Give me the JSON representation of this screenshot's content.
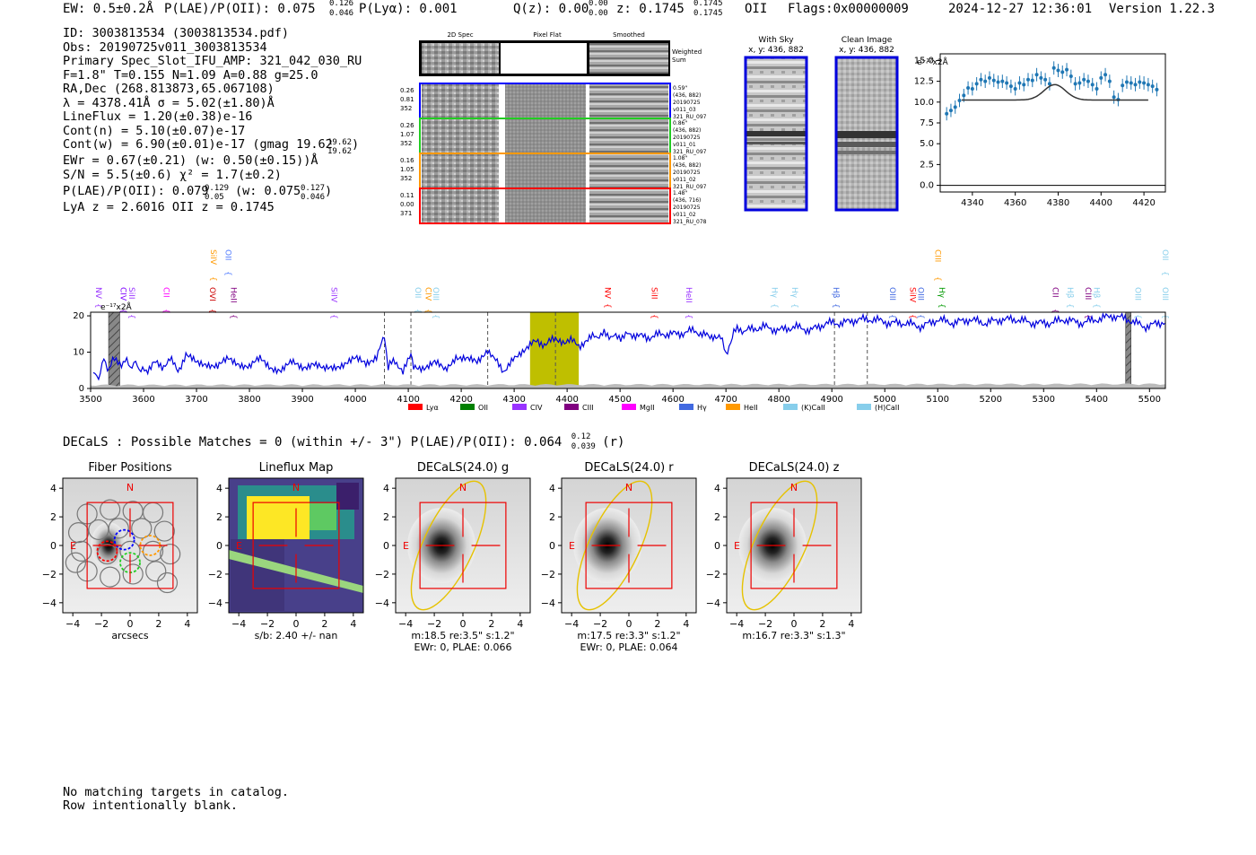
{
  "header": {
    "ew": "EW: 0.5±0.2Å",
    "plae": "P(LAE)/P(OII): 0.075",
    "plae_sup": "0.126",
    "plae_sub": "0.046",
    "plya": "P(Lyα): 0.001",
    "qz": "Q(z): 0.00",
    "qz_sup": "0.00",
    "qz_sub": "0.00",
    "z": "z: 0.1745",
    "z_sup": "0.1745",
    "z_sub": "0.1745",
    "z_line": "OII",
    "flags": "Flags:0x00000009",
    "timestamp": "2024-12-27 12:36:01",
    "version": "Version 1.22.3"
  },
  "info": {
    "id": "ID: 3003813534 (3003813534.pdf)",
    "obs": "Obs: 20190725v011_3003813534",
    "primary": "Primary Spec_Slot_IFU_AMP: 321_042_030_RU",
    "params": "F=1.8\"  T=0.155  N=1.09  A=0.88  g=25.0",
    "radec": "RA,Dec (268.813873,65.067108)",
    "lambda": "λ = 4378.41Å  σ = 5.02(±1.80)Å",
    "lineflux": "LineFlux = 1.20(±0.38)e-16",
    "contn": "Cont(n) = 5.10(±0.07)e-17",
    "contw": "Cont(w) = 6.90(±0.01)e-17 (gmag 19.62",
    "contw_sup": "19.62",
    "contw_sub": "19.62",
    "ewr": "EWr = 0.67(±0.21) (w: 0.50(±0.15))Å",
    "sn": "S/N = 5.5(±0.6)  χ² = 1.7(±0.2)",
    "plae": "P(LAE)/P(OII): 0.079",
    "plae_sup": "0.129",
    "plae_sub": "0.05",
    "plae_w": "(w: 0.075",
    "plae_w_sup": "0.127",
    "plae_w_sub": "0.046",
    "lya": "LyA z = 2.6016  OII z = 0.1745"
  },
  "cutouts": {
    "col_headers": [
      "2D Spec",
      "Pixel Flat",
      "Smoothed"
    ],
    "weighted_label": "Weighted Sum",
    "rows": [
      {
        "left": [
          "0.26",
          "0.81",
          "352"
        ],
        "right": [
          "0.59\"",
          "(436, 882)",
          "20190725",
          "v011_03",
          "321_RU_097"
        ],
        "color": "#0000ff"
      },
      {
        "left": [
          "0.26",
          "1.07",
          "352"
        ],
        "right": [
          "0.86\"",
          "(436, 882)",
          "20190725",
          "v011_01",
          "321_RU_097"
        ],
        "color": "#22cc22"
      },
      {
        "left": [
          "0.16",
          "1.05",
          "352"
        ],
        "right": [
          "1.08\"",
          "(436, 882)",
          "20190725",
          "v011_02",
          "321_RU_097"
        ],
        "color": "#ff9900"
      },
      {
        "left": [
          "0.11",
          "0.00",
          "371"
        ],
        "right": [
          "1.48\"",
          "(436, 716)",
          "20190725",
          "v011_02",
          "321_RU_078"
        ],
        "color": "#ff0000"
      }
    ]
  },
  "sky": {
    "with_title": "With Sky",
    "with_coords": "x, y: 436, 882",
    "clean_title": "Clean Image",
    "clean_coords": "x, y: 436, 882"
  },
  "zoom_chart": {
    "chart_data": {
      "type": "scatter",
      "ylabel": "e⁻¹⁷x2Å",
      "xlim": [
        4325,
        4430
      ],
      "ylim": [
        -0.8,
        15.8
      ],
      "xticks": [
        4340,
        4360,
        4380,
        4400,
        4420
      ],
      "yticks": [
        "0.0",
        "2.5",
        "5.0",
        "7.5",
        "10.0",
        "12.5",
        "15.0"
      ],
      "x": [
        4328,
        4330,
        4332,
        4334,
        4336,
        4338,
        4340,
        4342,
        4344,
        4346,
        4348,
        4350,
        4352,
        4354,
        4356,
        4358,
        4360,
        4362,
        4364,
        4366,
        4368,
        4370,
        4372,
        4374,
        4376,
        4378,
        4380,
        4382,
        4384,
        4386,
        4388,
        4390,
        4392,
        4394,
        4396,
        4398,
        4400,
        4402,
        4404,
        4406,
        4408,
        4410,
        4412,
        4414,
        4416,
        4418,
        4420,
        4422,
        4424,
        4426
      ],
      "y": [
        8.6,
        9.0,
        9.4,
        10.2,
        10.8,
        11.7,
        11.6,
        12.2,
        12.7,
        12.5,
        12.9,
        12.6,
        12.4,
        12.5,
        12.3,
        11.9,
        11.6,
        12.3,
        12.1,
        12.7,
        12.6,
        13.3,
        12.9,
        12.7,
        12.2,
        14.1,
        13.8,
        13.6,
        13.9,
        13.1,
        12.2,
        12.3,
        12.7,
        12.5,
        12.1,
        11.6,
        12.9,
        13.3,
        12.5,
        10.6,
        10.3,
        12.0,
        12.4,
        12.3,
        12.1,
        12.4,
        12.3,
        12.1,
        11.9,
        11.5
      ],
      "yerr": 0.8,
      "model": {
        "baseline": 10.25,
        "amp": 1.85,
        "center": 4378.4,
        "sigma": 5.02
      }
    }
  },
  "spectrum": {
    "chart_data": {
      "type": "line",
      "ylabel": "e⁻¹⁷x2Å",
      "xlim": [
        3500,
        5530
      ],
      "ylim": [
        0,
        21
      ],
      "xticks": [
        3500,
        3600,
        3700,
        3800,
        3900,
        4000,
        4100,
        4200,
        4300,
        4400,
        4500,
        4600,
        4700,
        4800,
        4900,
        5000,
        5100,
        5200,
        5300,
        5400,
        5500
      ],
      "yticks": [
        0,
        10,
        20
      ],
      "highlight": [
        4330,
        4422
      ],
      "gray_bands": [
        [
          3534,
          3555
        ],
        [
          5455,
          5465
        ]
      ],
      "dashed_lines": [
        4055,
        4105,
        4250,
        4378,
        4905,
        4967
      ],
      "line_labels": [
        {
          "name": "NV",
          "wave": 3505,
          "row": 1,
          "color": "#9933ff"
        },
        {
          "name": "CIV",
          "wave": 3552,
          "row": 1,
          "color": "#7f00ff"
        },
        {
          "name": "SiII",
          "wave": 3568,
          "row": 1,
          "color": "#9933ff"
        },
        {
          "name": "CII",
          "wave": 3633,
          "row": 1,
          "color": "#ff00ff"
        },
        {
          "name": "SiIV",
          "wave": 3722,
          "row": 0,
          "color": "#ff9900"
        },
        {
          "name": "OII",
          "wave": 3750,
          "row": 0,
          "color": "#4d79ff"
        },
        {
          "name": "OVI",
          "wave": 3720,
          "row": 1,
          "color": "#cc0000"
        },
        {
          "name": "HeII",
          "wave": 3760,
          "row": 1,
          "color": "#800080"
        },
        {
          "name": "SiIV",
          "wave": 3950,
          "row": 1,
          "color": "#9933ff"
        },
        {
          "name": "OII",
          "wave": 4108,
          "row": 1,
          "color": "#87ceeb"
        },
        {
          "name": "CIV",
          "wave": 4128,
          "row": 1,
          "color": "#ff9900"
        },
        {
          "name": "OIII",
          "wave": 4142,
          "row": 1,
          "color": "#87ceeb"
        },
        {
          "name": "NV",
          "wave": 4467,
          "row": 1,
          "color": "#ff0000"
        },
        {
          "name": "SiII",
          "wave": 4555,
          "row": 1,
          "color": "#ff0000"
        },
        {
          "name": "HeII",
          "wave": 4620,
          "row": 1,
          "color": "#9933ff"
        },
        {
          "name": "Hγ",
          "wave": 4782,
          "row": 1,
          "color": "#87ceeb"
        },
        {
          "name": "Hγ",
          "wave": 4820,
          "row": 1,
          "color": "#87ceeb"
        },
        {
          "name": "Hβ",
          "wave": 4898,
          "row": 1,
          "color": "#4169e1"
        },
        {
          "name": "OIII",
          "wave": 5005,
          "row": 1,
          "color": "#4169e1"
        },
        {
          "name": "SiIV",
          "wave": 5043,
          "row": 1,
          "color": "#ff0000"
        },
        {
          "name": "OIII",
          "wave": 5058,
          "row": 1,
          "color": "#4169e1"
        },
        {
          "name": "CIII",
          "wave": 5090,
          "row": 0,
          "color": "#ff9900"
        },
        {
          "name": "Hγ",
          "wave": 5098,
          "row": 1,
          "color": "#009900"
        },
        {
          "name": "CII",
          "wave": 5312,
          "row": 1,
          "color": "#800080"
        },
        {
          "name": "Hβ",
          "wave": 5340,
          "row": 1,
          "color": "#87ceeb"
        },
        {
          "name": "CIII",
          "wave": 5374,
          "row": 1,
          "color": "#800080"
        },
        {
          "name": "Hβ",
          "wave": 5390,
          "row": 1,
          "color": "#87ceeb"
        },
        {
          "name": "OIII",
          "wave": 5468,
          "row": 1,
          "color": "#87ceeb"
        },
        {
          "name": "OII",
          "wave": 5520,
          "row": 0,
          "color": "#87ceeb"
        },
        {
          "name": "OIII",
          "wave": 5520,
          "row": 1,
          "color": "#87ceeb"
        }
      ],
      "series": [
        {
          "name": "flux",
          "x": [
            3505,
            3515,
            3525,
            3535,
            3545,
            3555,
            3565,
            3575,
            3585,
            3595,
            3605,
            3620,
            3635,
            3650,
            3665,
            3680,
            3700,
            3720,
            3740,
            3760,
            3780,
            3800,
            3820,
            3840,
            3860,
            3880,
            3900,
            3920,
            3940,
            3960,
            3980,
            4000,
            4020,
            4040,
            4055,
            4062,
            4075,
            4090,
            4105,
            4110,
            4130,
            4150,
            4170,
            4190,
            4210,
            4230,
            4250,
            4262,
            4280,
            4295,
            4310,
            4330,
            4345,
            4360,
            4378,
            4395,
            4410,
            4425,
            4445,
            4470,
            4495,
            4520,
            4550,
            4580,
            4610,
            4640,
            4670,
            4690,
            4700,
            4715,
            4740,
            4770,
            4800,
            4830,
            4860,
            4890,
            4920,
            4950,
            4980,
            5010,
            5040,
            5070,
            5100,
            5130,
            5160,
            5190,
            5220,
            5250,
            5280,
            5310,
            5340,
            5370,
            5400,
            5430,
            5460,
            5490,
            5520,
            5530
          ],
          "y": [
            4,
            3,
            8,
            5,
            9,
            6,
            8,
            6,
            7,
            5,
            5,
            7,
            6,
            8,
            5,
            9,
            7,
            7,
            6,
            8,
            7,
            6,
            8,
            6,
            5,
            7,
            6,
            7,
            5,
            6,
            7,
            8,
            7,
            9,
            14,
            6,
            8,
            4,
            10,
            6,
            6,
            7,
            5,
            9,
            8,
            7,
            11,
            8,
            5,
            7,
            10,
            12,
            13,
            12,
            14,
            13,
            13,
            12,
            14,
            15,
            14,
            15,
            14,
            15,
            15,
            16,
            14,
            15,
            9,
            16,
            16,
            17,
            16,
            17,
            16,
            18,
            18,
            19,
            19,
            18,
            18,
            17,
            19,
            18,
            19,
            18,
            19,
            19,
            18,
            18,
            19,
            18,
            19,
            20,
            19,
            17,
            18,
            18
          ]
        },
        {
          "name": "noise",
          "x": [
            3500,
            5530
          ],
          "y": [
            0.6,
            0.9
          ]
        }
      ],
      "legend": [
        {
          "name": "Lyα",
          "color": "#ff0000"
        },
        {
          "name": "OII",
          "color": "#008000"
        },
        {
          "name": "CIV",
          "color": "#9933ff"
        },
        {
          "name": "CIII",
          "color": "#800080"
        },
        {
          "name": "MgII",
          "color": "#ff00ff"
        },
        {
          "name": "Hγ",
          "color": "#4169e1"
        },
        {
          "name": "HeII",
          "color": "#ff9900"
        },
        {
          "name": "(K)CaII",
          "color": "#87ceeb"
        },
        {
          "name": "(H)CaII",
          "color": "#87ceeb"
        }
      ]
    }
  },
  "decals": {
    "summary": "DECaLS : Possible Matches = 0 (within +/- 3\")  P(LAE)/P(OII): 0.064",
    "summary_sup": "0.12",
    "summary_sub": "0.039",
    "summary_band": "(r)",
    "panels": [
      {
        "title": "Fiber Positions",
        "caption1": "arcsecs",
        "caption2": ""
      },
      {
        "title": "Lineflux Map",
        "caption1": "s/b: 2.40 +/- nan",
        "caption2": ""
      },
      {
        "title": "DECaLS(24.0) g",
        "caption1": "m:18.5  re:3.5\"  s:1.2\"",
        "caption2": "EWr: 0, PLAE: 0.066"
      },
      {
        "title": "DECaLS(24.0) r",
        "caption1": "m:17.5  re:3.3\"  s:1.2\"",
        "caption2": "EWr: 0, PLAE: 0.064"
      },
      {
        "title": "DECaLS(24.0) z",
        "caption1": "m:16.7  re:3.3\"  s:1.3\"",
        "caption2": ""
      }
    ],
    "axis_ticks": [
      "4",
      "2",
      "0",
      "−2",
      "−4"
    ],
    "x_ticks": [
      "−4",
      "−2",
      "0",
      "2",
      "4"
    ],
    "north": "N",
    "east": "E"
  },
  "footer": {
    "line1": "No matching targets in catalog.",
    "line2": "Row intentionally blank."
  }
}
